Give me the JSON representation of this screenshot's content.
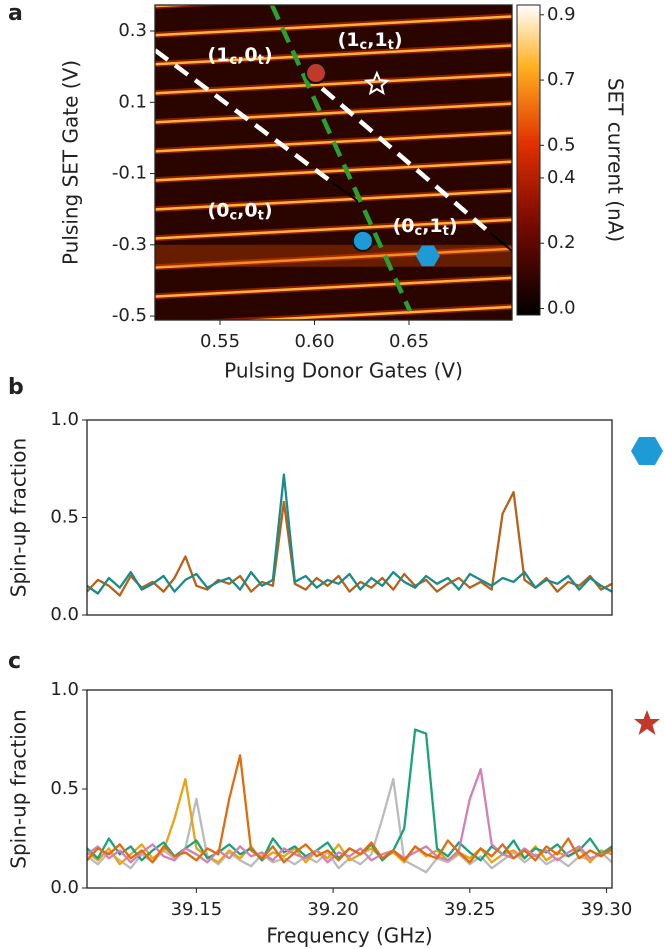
{
  "chart_data": [
    {
      "type": "heatmap",
      "panel_label": "a",
      "xlabel": "Pulsing Donor Gates (V)",
      "ylabel": "Pulsing SET Gate (V)",
      "xlim": [
        0.5156,
        0.7045
      ],
      "ylim": [
        -0.511,
        0.373
      ],
      "xticks": [
        0.55,
        {
          "value": 0.6,
          "label": "0.60"
        },
        0.65
      ],
      "yticks": [
        0.3,
        0.1,
        -0.1,
        -0.3,
        -0.5
      ],
      "colorbar": {
        "label": "SET current (nA)",
        "lim": [
          -0.02,
          0.93
        ],
        "ticks": [
          0.9,
          0.7,
          0.5,
          0.4,
          0.2,
          {
            "value": 0,
            "label": "0.0"
          }
        ]
      },
      "lines": [
        {
          "color": "#ffffff",
          "points": [
            [
              0.5156,
              0.246
            ],
            [
              0.6082,
              -0.12
            ]
          ]
        },
        {
          "color": "#000000",
          "points": [
            [
              0.6082,
              -0.12
            ],
            [
              0.6241,
              -0.182
            ]
          ]
        },
        {
          "color": "#2ca02c",
          "points": [
            [
              0.5775,
              0.373
            ],
            [
              0.6505,
              -0.486
            ]
          ]
        },
        {
          "color": "#ffffff",
          "points": [
            [
              0.604,
              0.139
            ],
            [
              0.6928,
              -0.266
            ]
          ]
        },
        {
          "color": "#000000",
          "points": [
            [
              0.6928,
              -0.266
            ],
            [
              0.7045,
              -0.317
            ]
          ]
        }
      ],
      "markers": [
        {
          "shape": "circle",
          "color": "#c0392b",
          "x": 0.6008,
          "y": 0.182
        },
        {
          "shape": "circle",
          "color": "#1e9bd7",
          "x": 0.6256,
          "y": -0.289
        },
        {
          "shape": "star",
          "color": "#c0392b",
          "x": 0.633,
          "y": 0.151
        },
        {
          "shape": "hexagon",
          "color": "#1e9bd7",
          "x": 0.66,
          "y": -0.331
        }
      ],
      "annotations": [
        {
          "parts": [
            "(1",
            "c",
            ",0",
            "t",
            ")"
          ],
          "x": 0.5606,
          "y": 0.232
        },
        {
          "parts": [
            "(1",
            "c",
            ",1",
            "t",
            ")"
          ],
          "x": 0.6294,
          "y": 0.275
        },
        {
          "parts": [
            "(0",
            "c",
            ",0",
            "t",
            ")"
          ],
          "x": 0.5606,
          "y": -0.204
        },
        {
          "parts": [
            "(0",
            "c",
            ",1",
            "t",
            ")"
          ],
          "x": 0.6585,
          "y": -0.247
        }
      ]
    },
    {
      "type": "line",
      "panel_label": "b",
      "ylabel": "Spin-up fraction",
      "xlim": [
        39.11,
        39.302
      ],
      "ylim": [
        0,
        1
      ],
      "yticks": [
        {
          "value": 0,
          "label": "0.0"
        },
        0.5,
        {
          "value": 1,
          "label": "1.0"
        }
      ],
      "x": [
        39.11,
        39.114,
        39.118,
        39.122,
        39.126,
        39.13,
        39.134,
        39.138,
        39.142,
        39.146,
        39.15,
        39.154,
        39.158,
        39.162,
        39.166,
        39.17,
        39.174,
        39.178,
        39.182,
        39.186,
        39.19,
        39.194,
        39.198,
        39.202,
        39.206,
        39.21,
        39.214,
        39.218,
        39.222,
        39.226,
        39.23,
        39.234,
        39.238,
        39.242,
        39.246,
        39.25,
        39.254,
        39.258,
        39.262,
        39.266,
        39.27,
        39.274,
        39.278,
        39.282,
        39.286,
        39.29,
        39.294,
        39.298,
        39.302
      ],
      "series": [
        {
          "color": "#b5621b",
          "values": [
            0.12,
            0.18,
            0.15,
            0.1,
            0.2,
            0.14,
            0.17,
            0.12,
            0.19,
            0.3,
            0.15,
            0.13,
            0.18,
            0.16,
            0.2,
            0.12,
            0.17,
            0.15,
            0.58,
            0.16,
            0.13,
            0.19,
            0.15,
            0.2,
            0.12,
            0.17,
            0.14,
            0.19,
            0.13,
            0.21,
            0.15,
            0.18,
            0.12,
            0.16,
            0.19,
            0.14,
            0.17,
            0.13,
            0.52,
            0.63,
            0.18,
            0.14,
            0.19,
            0.12,
            0.17,
            0.15,
            0.2,
            0.13,
            0.16
          ]
        },
        {
          "color": "#1a8a8a",
          "values": [
            0.15,
            0.11,
            0.19,
            0.14,
            0.22,
            0.13,
            0.16,
            0.2,
            0.12,
            0.18,
            0.21,
            0.14,
            0.17,
            0.19,
            0.13,
            0.22,
            0.15,
            0.18,
            0.72,
            0.17,
            0.2,
            0.14,
            0.18,
            0.16,
            0.21,
            0.13,
            0.19,
            0.15,
            0.22,
            0.17,
            0.14,
            0.2,
            0.16,
            0.19,
            0.13,
            0.21,
            0.18,
            0.15,
            0.19,
            0.17,
            0.22,
            0.14,
            0.18,
            0.16,
            0.2,
            0.13,
            0.19,
            0.15,
            0.12
          ]
        }
      ]
    },
    {
      "type": "line",
      "panel_label": "c",
      "ylabel": "Spin-up fraction",
      "xlabel": "Frequency (GHz)",
      "xlim": [
        39.11,
        39.302
      ],
      "ylim": [
        0,
        1
      ],
      "xticks": [
        39.15,
        {
          "value": 39.2,
          "label": "39.20"
        },
        39.25,
        {
          "value": 39.3,
          "label": "39.30"
        }
      ],
      "yticks": [
        {
          "value": 0,
          "label": "0.0"
        },
        0.5,
        {
          "value": 1,
          "label": "1.0"
        }
      ],
      "x": [
        39.11,
        39.114,
        39.118,
        39.122,
        39.126,
        39.13,
        39.134,
        39.138,
        39.142,
        39.146,
        39.15,
        39.154,
        39.158,
        39.162,
        39.166,
        39.17,
        39.174,
        39.178,
        39.182,
        39.186,
        39.19,
        39.194,
        39.198,
        39.202,
        39.206,
        39.21,
        39.214,
        39.218,
        39.222,
        39.226,
        39.23,
        39.234,
        39.238,
        39.242,
        39.246,
        39.25,
        39.254,
        39.258,
        39.262,
        39.266,
        39.27,
        39.274,
        39.278,
        39.282,
        39.286,
        39.29,
        39.294,
        39.298,
        39.302
      ],
      "series": [
        {
          "color": "#bbbbbb",
          "values": [
            0.16,
            0.12,
            0.18,
            0.14,
            0.1,
            0.17,
            0.13,
            0.19,
            0.15,
            0.2,
            0.45,
            0.16,
            0.12,
            0.18,
            0.14,
            0.11,
            0.17,
            0.13,
            0.15,
            0.12,
            0.16,
            0.13,
            0.18,
            0.1,
            0.15,
            0.12,
            0.17,
            0.35,
            0.55,
            0.14,
            0.11,
            0.08,
            0.15,
            0.13,
            0.17,
            0.12,
            0.16,
            0.1,
            0.14,
            0.18,
            0.13,
            0.17,
            0.12,
            0.15,
            0.11,
            0.16,
            0.14,
            0.18,
            0.13
          ]
        },
        {
          "color": "#e8a317",
          "values": [
            0.18,
            0.14,
            0.2,
            0.12,
            0.17,
            0.22,
            0.15,
            0.19,
            0.35,
            0.55,
            0.2,
            0.16,
            0.13,
            0.19,
            0.15,
            0.21,
            0.14,
            0.18,
            0.16,
            0.2,
            0.13,
            0.19,
            0.15,
            0.22,
            0.14,
            0.17,
            0.2,
            0.15,
            0.18,
            0.13,
            0.21,
            0.16,
            0.19,
            0.14,
            0.18,
            0.15,
            0.2,
            0.13,
            0.17,
            0.19,
            0.15,
            0.21,
            0.14,
            0.18,
            0.16,
            0.2,
            0.13,
            0.19,
            0.17
          ]
        },
        {
          "color": "#1aa37a",
          "values": [
            0.2,
            0.15,
            0.25,
            0.17,
            0.21,
            0.14,
            0.19,
            0.23,
            0.16,
            0.2,
            0.24,
            0.15,
            0.18,
            0.22,
            0.17,
            0.2,
            0.14,
            0.25,
            0.18,
            0.21,
            0.16,
            0.19,
            0.23,
            0.15,
            0.2,
            0.17,
            0.22,
            0.14,
            0.19,
            0.3,
            0.8,
            0.78,
            0.2,
            0.16,
            0.23,
            0.18,
            0.14,
            0.21,
            0.17,
            0.24,
            0.15,
            0.2,
            0.18,
            0.22,
            0.16,
            0.19,
            0.25,
            0.17,
            0.21
          ]
        },
        {
          "color": "#d47fb5",
          "values": [
            0.17,
            0.21,
            0.15,
            0.19,
            0.13,
            0.18,
            0.22,
            0.16,
            0.14,
            0.2,
            0.17,
            0.13,
            0.19,
            0.15,
            0.21,
            0.16,
            0.18,
            0.14,
            0.2,
            0.17,
            0.15,
            0.19,
            0.13,
            0.18,
            0.16,
            0.2,
            0.14,
            0.17,
            0.19,
            0.15,
            0.18,
            0.21,
            0.16,
            0.14,
            0.19,
            0.45,
            0.6,
            0.22,
            0.17,
            0.15,
            0.2,
            0.16,
            0.19,
            0.14,
            0.18,
            0.21,
            0.15,
            0.17,
            0.19
          ]
        },
        {
          "color": "#e06c10",
          "values": [
            0.14,
            0.2,
            0.17,
            0.22,
            0.15,
            0.19,
            0.13,
            0.21,
            0.16,
            0.18,
            0.14,
            0.2,
            0.17,
            0.45,
            0.67,
            0.19,
            0.15,
            0.21,
            0.13,
            0.18,
            0.22,
            0.16,
            0.19,
            0.14,
            0.2,
            0.17,
            0.23,
            0.15,
            0.19,
            0.14,
            0.21,
            0.17,
            0.15,
            0.24,
            0.18,
            0.13,
            0.2,
            0.16,
            0.22,
            0.15,
            0.19,
            0.14,
            0.21,
            0.17,
            0.25,
            0.15,
            0.19,
            0.16,
            0.2
          ]
        }
      ]
    }
  ]
}
